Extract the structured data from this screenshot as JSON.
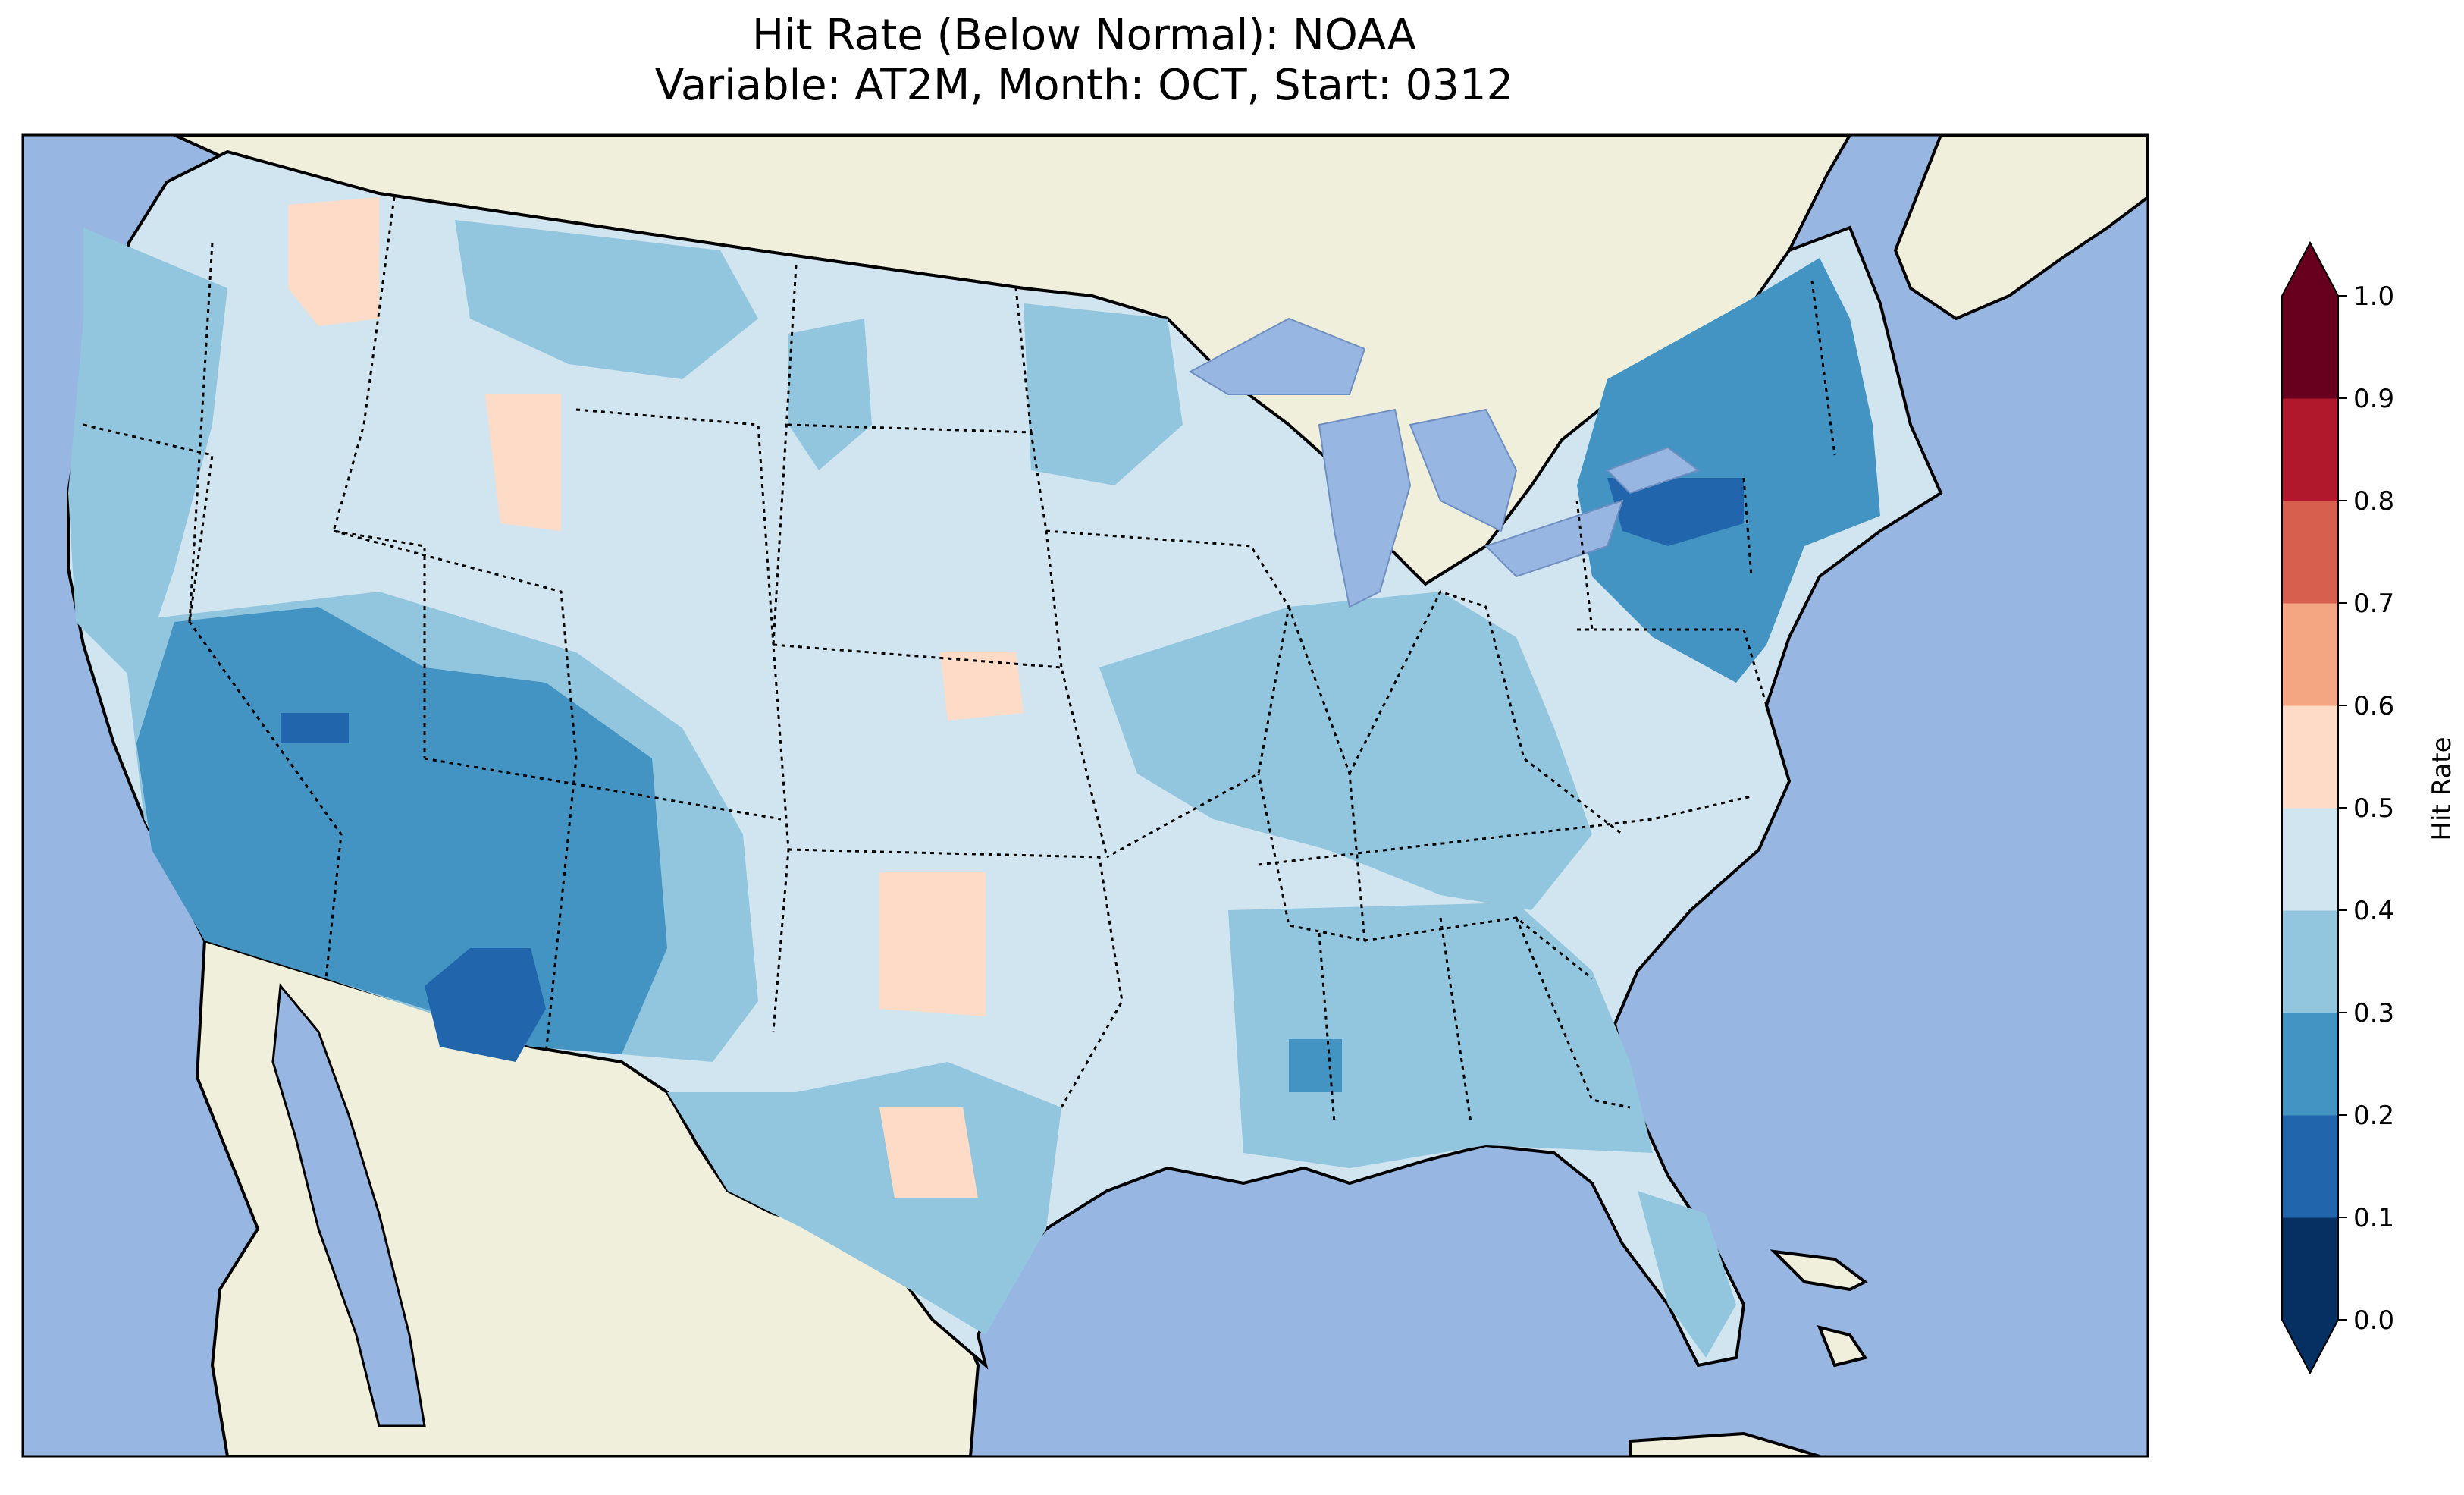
{
  "title": {
    "line1": "Hit Rate (Below Normal): NOAA",
    "line2": "Variable: AT2M, Month: OCT, Start: 0312"
  },
  "colorbar": {
    "label": "Hit Rate",
    "ticks": [
      "0.0",
      "0.1",
      "0.2",
      "0.3",
      "0.4",
      "0.5",
      "0.6",
      "0.7",
      "0.8",
      "0.9",
      "1.0"
    ],
    "colors": [
      "#053061",
      "#2166ac",
      "#4393c3",
      "#92c5de",
      "#d1e5f0",
      "#f7f7f7",
      "#fddbc7",
      "#f4a582",
      "#d6604d",
      "#b2182b",
      "#67001f"
    ],
    "under_color": "#053061",
    "over_color": "#67001f"
  },
  "map_colors": {
    "ocean": "#97b6e1",
    "land": "#efefdb",
    "lakes": "#97b6e1"
  }
}
